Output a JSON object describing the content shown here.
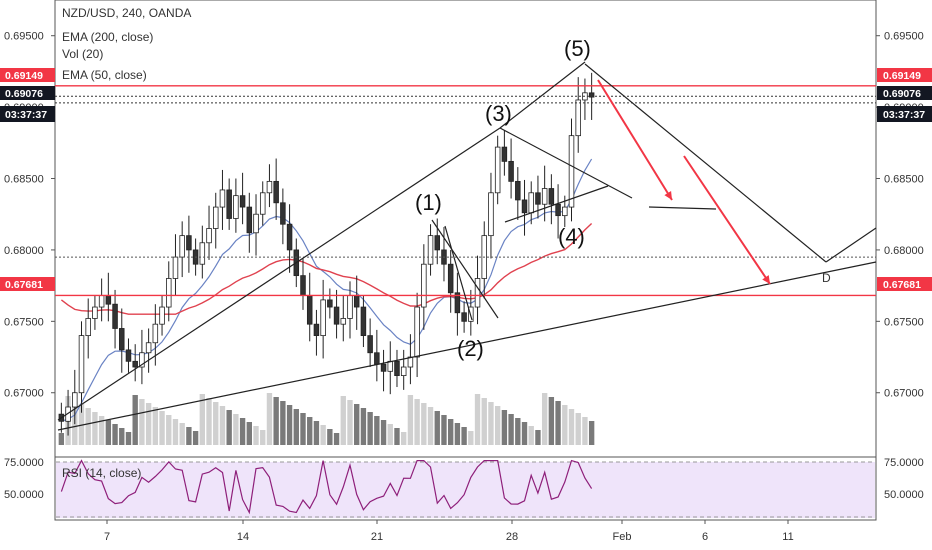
{
  "chart_data": {
    "type": "candlestick",
    "legend": {
      "symbol": "NZD/USD, 240, OANDA",
      "ema200": "EMA (200, close)",
      "volume": "Vol (20)",
      "ema50": "EMA (50, close)",
      "rsi": "RSI (14, close)"
    },
    "price_axis": {
      "ticks": [
        "0.69500",
        "0.69000",
        "0.68500",
        "0.68000",
        "0.67500",
        "0.67000"
      ],
      "tick_values": [
        0.695,
        0.69,
        0.685,
        0.68,
        0.675,
        0.67
      ],
      "ylim": [
        0.6655,
        0.6975
      ]
    },
    "price_tags": {
      "upper_level": "0.69149",
      "last_price": "0.69076",
      "countdown": "03:37:37",
      "lower_level": "0.67681"
    },
    "rsi_axis": {
      "ticks": [
        "75.0000",
        "50.0000"
      ],
      "tick_values": [
        75,
        50
      ],
      "ylim": [
        30,
        78
      ]
    },
    "date_axis": {
      "ticks": [
        "7",
        "14",
        "21",
        "28",
        "Feb",
        "6",
        "11"
      ]
    },
    "wave_labels": [
      "(1)",
      "(2)",
      "(3)",
      "(4)",
      "(5)",
      "D"
    ],
    "horizontal_levels": [
      0.69149,
      0.67681
    ],
    "series_close": [
      0.668,
      0.669,
      0.67,
      0.674,
      0.6752,
      0.676,
      0.6768,
      0.6762,
      0.6745,
      0.673,
      0.6722,
      0.6718,
      0.6728,
      0.6735,
      0.6748,
      0.676,
      0.678,
      0.6795,
      0.681,
      0.68,
      0.679,
      0.6805,
      0.6815,
      0.683,
      0.6842,
      0.6822,
      0.6838,
      0.683,
      0.6812,
      0.6825,
      0.684,
      0.6848,
      0.6833,
      0.6818,
      0.68,
      0.6782,
      0.6768,
      0.6748,
      0.674,
      0.6765,
      0.676,
      0.6748,
      0.6752,
      0.6768,
      0.676,
      0.674,
      0.6728,
      0.672,
      0.6715,
      0.6722,
      0.6712,
      0.6718,
      0.6725,
      0.676,
      0.679,
      0.681,
      0.68,
      0.679,
      0.677,
      0.6756,
      0.675,
      0.676,
      0.678,
      0.681,
      0.684,
      0.6872,
      0.6862,
      0.6848,
      0.6835,
      0.6826,
      0.684,
      0.6832,
      0.6843,
      0.6832,
      0.6824,
      0.683,
      0.688,
      0.6905,
      0.691,
      0.6907
    ]
  }
}
